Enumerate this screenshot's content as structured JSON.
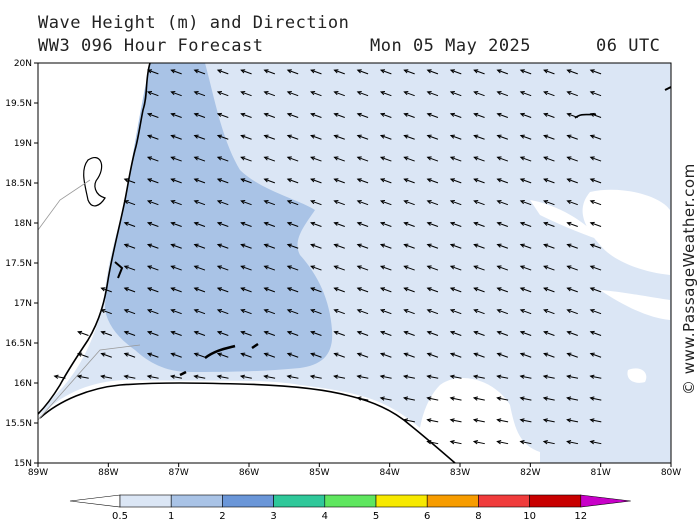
{
  "header": {
    "title_line1": "Wave Height (m) and Direction",
    "title_line2": "WW3 096 Hour Forecast",
    "date": "Mon 05 May 2025",
    "time": "06 UTC"
  },
  "credit": "© www.PassageWeather.com",
  "map": {
    "lat_labels": [
      "20N",
      "19.5N",
      "19N",
      "18.5N",
      "18N",
      "17.5N",
      "17N",
      "16.5N",
      "16N",
      "15.5N",
      "15N"
    ],
    "lon_labels": [
      "89W",
      "88W",
      "87W",
      "86W",
      "85W",
      "84W",
      "83W",
      "82W",
      "81W",
      "80W"
    ],
    "arrow_direction": "west-northwest",
    "colors": {
      "land": "#ffffff",
      "coast": "#000000",
      "band_0_5_1": "#dbe6f5",
      "band_1_2": "#a9c3e6"
    }
  },
  "legend": {
    "labels": [
      "0.5",
      "1",
      "2",
      "3",
      "4",
      "5",
      "6",
      "8",
      "10",
      "12"
    ],
    "colors": [
      "#ffffff",
      "#dbe6f5",
      "#a9c3e6",
      "#6a96d8",
      "#2fc89a",
      "#5fe65f",
      "#f7e900",
      "#f79c00",
      "#f03c3c",
      "#c80000",
      "#c800c8"
    ]
  }
}
